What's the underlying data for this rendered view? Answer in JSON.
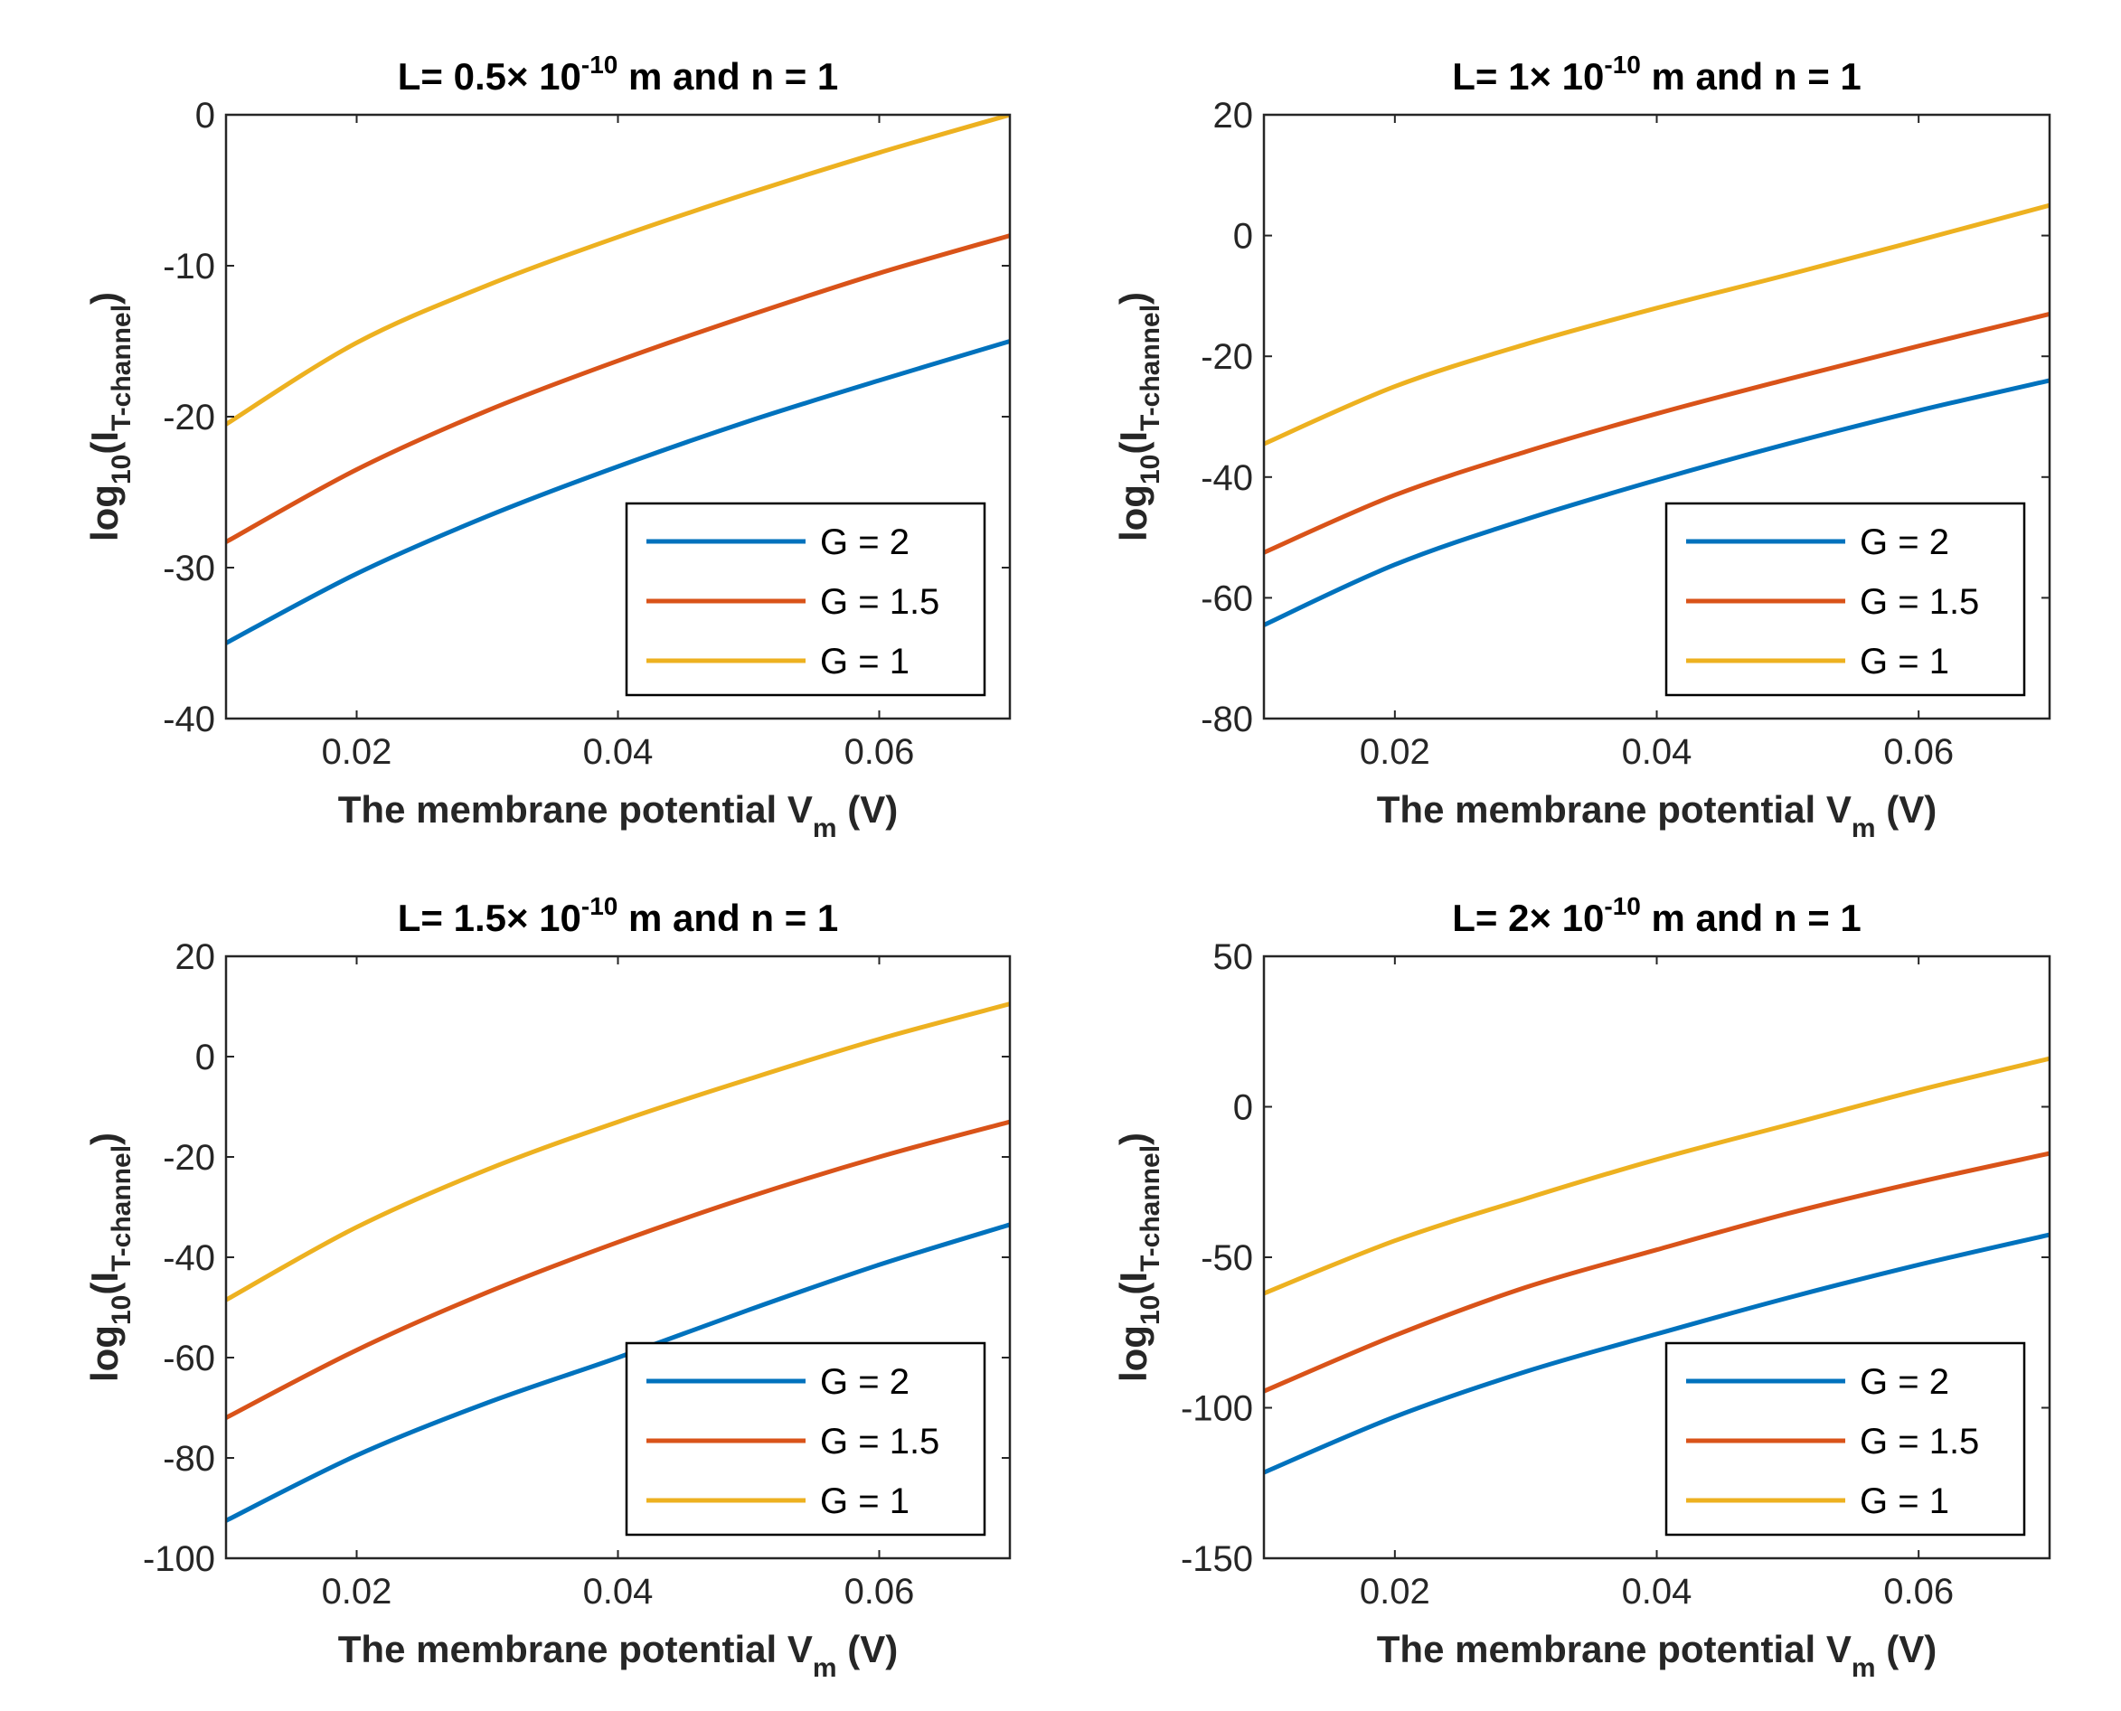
{
  "colors": {
    "blue": "#0072BD",
    "orange": "#D95319",
    "yellow": "#EDB120",
    "axis": "#262626"
  },
  "chart_data": [
    {
      "type": "line",
      "title": {
        "main": "L= 0.5× 10",
        "sup": "-10",
        "tail": " m and n = 1"
      },
      "xlabel": {
        "main": "The membrane potential V",
        "sub": "m",
        "tail": " (V)"
      },
      "ylabel": {
        "main": "log",
        "sub1": "10",
        "mid": "(I",
        "sub2": "T-channel",
        "tail": ")"
      },
      "xlim": [
        0.01,
        0.07
      ],
      "ylim": [
        -40,
        0
      ],
      "xticks": [
        0.02,
        0.04,
        0.06
      ],
      "xtick_labels": [
        "0.02",
        "0.04",
        "0.06"
      ],
      "yticks": [
        -40,
        -30,
        -20,
        -10,
        0
      ],
      "ytick_labels": [
        "-40",
        "-30",
        "-20",
        "-10",
        "0"
      ],
      "legend_position": "bottom-right",
      "series": [
        {
          "name": "G = 2",
          "color": "blue",
          "x": [
            0.01,
            0.02,
            0.03,
            0.04,
            0.05,
            0.06,
            0.07
          ],
          "y": [
            -35.0,
            -30.4,
            -26.6,
            -23.3,
            -20.3,
            -17.6,
            -15.0
          ]
        },
        {
          "name": "G = 1.5",
          "color": "orange",
          "x": [
            0.01,
            0.02,
            0.03,
            0.04,
            0.05,
            0.06,
            0.07
          ],
          "y": [
            -28.3,
            -23.5,
            -19.6,
            -16.3,
            -13.3,
            -10.5,
            -8.0
          ]
        },
        {
          "name": "G = 1",
          "color": "yellow",
          "x": [
            0.01,
            0.02,
            0.03,
            0.04,
            0.05,
            0.06,
            0.07
          ],
          "y": [
            -20.5,
            -15.1,
            -11.3,
            -8.1,
            -5.2,
            -2.5,
            0.0
          ]
        }
      ]
    },
    {
      "type": "line",
      "title": {
        "main": "L= 1× 10",
        "sup": "-10",
        "tail": " m and n = 1"
      },
      "xlabel": {
        "main": "The membrane potential V",
        "sub": "m",
        "tail": " (V)"
      },
      "ylabel": {
        "main": "log",
        "sub1": "10",
        "mid": "(I",
        "sub2": "T-channel",
        "tail": ")"
      },
      "xlim": [
        0.01,
        0.07
      ],
      "ylim": [
        -80,
        20
      ],
      "xticks": [
        0.02,
        0.04,
        0.06
      ],
      "xtick_labels": [
        "0.02",
        "0.04",
        "0.06"
      ],
      "yticks": [
        -80,
        -60,
        -40,
        -20,
        0,
        20
      ],
      "ytick_labels": [
        "-80",
        "-60",
        "-40",
        "-20",
        "0",
        "20"
      ],
      "legend_position": "bottom-right",
      "series": [
        {
          "name": "G = 2",
          "color": "blue",
          "x": [
            0.01,
            0.02,
            0.03,
            0.04,
            0.05,
            0.06,
            0.07
          ],
          "y": [
            -64.5,
            -54.5,
            -47.0,
            -40.5,
            -34.5,
            -29.0,
            -24.0
          ]
        },
        {
          "name": "G = 1.5",
          "color": "orange",
          "x": [
            0.01,
            0.02,
            0.03,
            0.04,
            0.05,
            0.06,
            0.07
          ],
          "y": [
            -52.5,
            -43.0,
            -35.8,
            -29.5,
            -23.8,
            -18.3,
            -13.0
          ]
        },
        {
          "name": "G = 1",
          "color": "yellow",
          "x": [
            0.01,
            0.02,
            0.03,
            0.04,
            0.05,
            0.06,
            0.07
          ],
          "y": [
            -34.5,
            -25.0,
            -18.0,
            -12.0,
            -6.5,
            -0.8,
            5.0
          ]
        }
      ]
    },
    {
      "type": "line",
      "title": {
        "main": "L= 1.5× 10",
        "sup": "-10",
        "tail": " m and n = 1"
      },
      "xlabel": {
        "main": "The membrane potential V",
        "sub": "m",
        "tail": " (V)"
      },
      "ylabel": {
        "main": "log",
        "sub1": "10",
        "mid": "(I",
        "sub2": "T-channel",
        "tail": ")"
      },
      "xlim": [
        0.01,
        0.07
      ],
      "ylim": [
        -100,
        20
      ],
      "xticks": [
        0.02,
        0.04,
        0.06
      ],
      "xtick_labels": [
        "0.02",
        "0.04",
        "0.06"
      ],
      "yticks": [
        -100,
        -80,
        -60,
        -40,
        -20,
        0,
        20
      ],
      "ytick_labels": [
        "-100",
        "-80",
        "-60",
        "-40",
        "-20",
        "0",
        "20"
      ],
      "legend_position": "bottom-right",
      "series": [
        {
          "name": "G = 2",
          "color": "blue",
          "x": [
            0.01,
            0.02,
            0.03,
            0.04,
            0.05,
            0.06,
            0.07
          ],
          "y": [
            -92.5,
            -79.5,
            -69.0,
            -60.0,
            -50.5,
            -41.5,
            -33.5
          ]
        },
        {
          "name": "G = 1.5",
          "color": "orange",
          "x": [
            0.01,
            0.02,
            0.03,
            0.04,
            0.05,
            0.06,
            0.07
          ],
          "y": [
            -72.0,
            -58.5,
            -47.0,
            -37.0,
            -28.0,
            -20.0,
            -13.0
          ]
        },
        {
          "name": "G = 1",
          "color": "yellow",
          "x": [
            0.01,
            0.02,
            0.03,
            0.04,
            0.05,
            0.06,
            0.07
          ],
          "y": [
            -48.5,
            -34.0,
            -22.5,
            -13.0,
            -4.5,
            3.5,
            10.5
          ]
        }
      ]
    },
    {
      "type": "line",
      "title": {
        "main": "L= 2× 10",
        "sup": "-10",
        "tail": " m and n = 1"
      },
      "xlabel": {
        "main": "The membrane potential V",
        "sub": "m",
        "tail": " (V)"
      },
      "ylabel": {
        "main": "log",
        "sub1": "10",
        "mid": "(I",
        "sub2": "T-channel",
        "tail": ")"
      },
      "xlim": [
        0.01,
        0.07
      ],
      "ylim": [
        -150,
        50
      ],
      "xticks": [
        0.02,
        0.04,
        0.06
      ],
      "xtick_labels": [
        "0.02",
        "0.04",
        "0.06"
      ],
      "yticks": [
        -150,
        -100,
        -50,
        0,
        50
      ],
      "ytick_labels": [
        "-150",
        "-100",
        "-50",
        "0",
        "50"
      ],
      "legend_position": "bottom-right",
      "series": [
        {
          "name": "G = 2",
          "color": "blue",
          "x": [
            0.01,
            0.02,
            0.03,
            0.04,
            0.05,
            0.06,
            0.07
          ],
          "y": [
            -121.5,
            -103.0,
            -88.0,
            -75.5,
            -63.5,
            -52.5,
            -42.5
          ]
        },
        {
          "name": "G = 1.5",
          "color": "orange",
          "x": [
            0.01,
            0.02,
            0.03,
            0.04,
            0.05,
            0.06,
            0.07
          ],
          "y": [
            -94.5,
            -76.0,
            -60.0,
            -47.5,
            -35.5,
            -25.0,
            -15.5
          ]
        },
        {
          "name": "G = 1",
          "color": "yellow",
          "x": [
            0.01,
            0.02,
            0.03,
            0.04,
            0.05,
            0.06,
            0.07
          ],
          "y": [
            -62.0,
            -44.5,
            -30.5,
            -17.5,
            -6.0,
            5.5,
            16.0
          ]
        }
      ]
    }
  ]
}
